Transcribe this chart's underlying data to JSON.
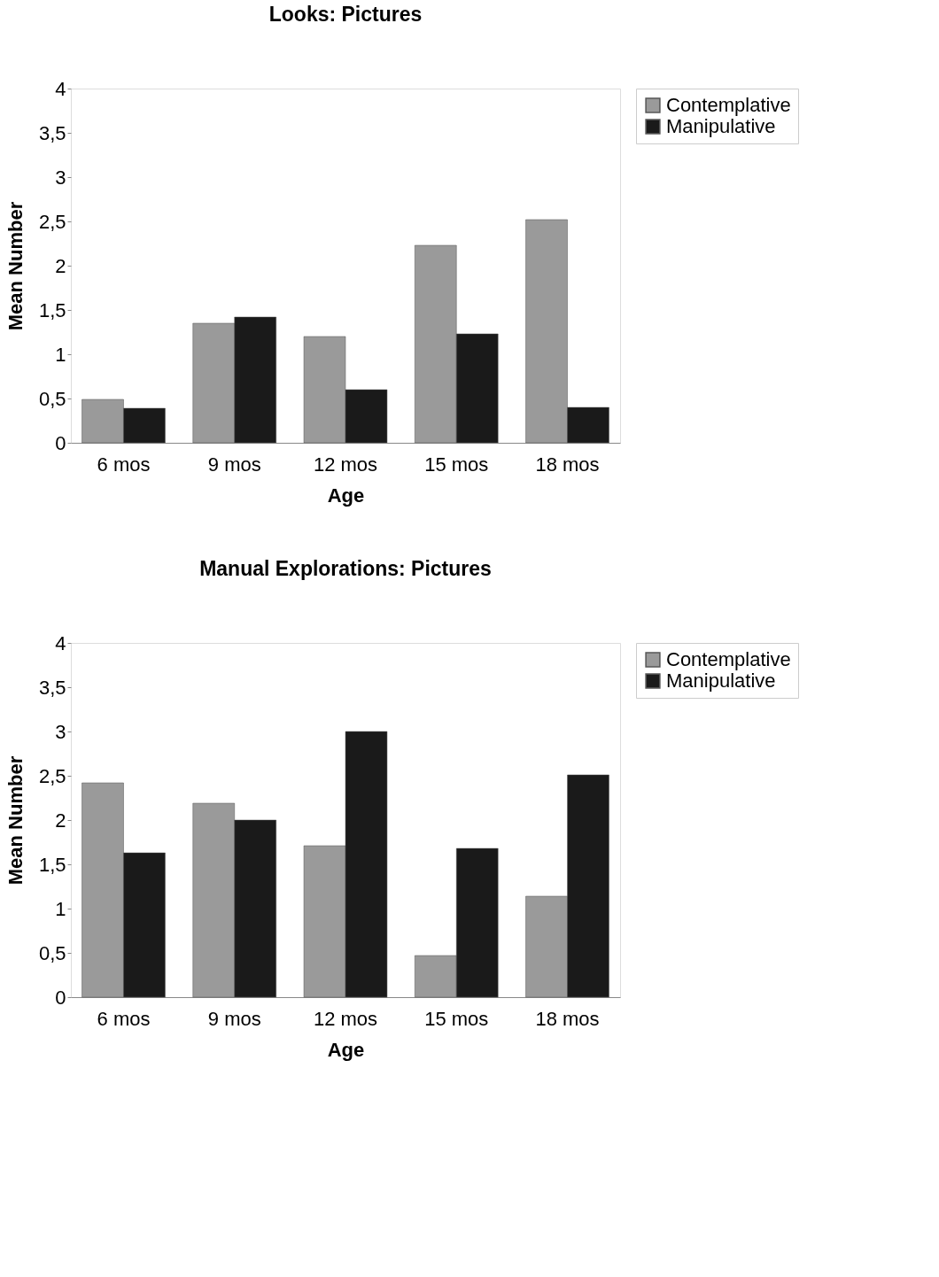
{
  "chart_data": [
    {
      "type": "bar",
      "title": "Looks: Pictures",
      "xlabel": "Age",
      "ylabel": "Mean Number",
      "categories": [
        "6 mos",
        "9 mos",
        "12 mos",
        "15 mos",
        "18 mos"
      ],
      "series": [
        {
          "name": "Contemplative",
          "color": "#9a9a9a",
          "values": [
            0.49,
            1.35,
            1.2,
            2.23,
            2.52
          ]
        },
        {
          "name": "Manipulative",
          "color": "#1a1a1a",
          "values": [
            0.39,
            1.42,
            0.6,
            1.23,
            0.4
          ]
        }
      ],
      "ylim": [
        0,
        4
      ],
      "yticks": [
        0,
        {
          "value": 0.5,
          "label": "0,5"
        },
        1,
        {
          "value": 1.5,
          "label": "1,5"
        },
        2,
        {
          "value": 2.5,
          "label": "2,5"
        },
        3,
        {
          "value": 3.5,
          "label": "3,5"
        },
        4
      ],
      "grid": false,
      "legend": "right"
    },
    {
      "type": "bar",
      "title": "Manual Explorations: Pictures",
      "xlabel": "Age",
      "ylabel": "Mean Number",
      "categories": [
        "6 mos",
        "9 mos",
        "12 mos",
        "15 mos",
        "18 mos"
      ],
      "series": [
        {
          "name": "Contemplative",
          "color": "#9a9a9a",
          "values": [
            2.42,
            2.19,
            1.71,
            0.47,
            1.14
          ]
        },
        {
          "name": "Manipulative",
          "color": "#1a1a1a",
          "values": [
            1.63,
            2.0,
            3.0,
            1.68,
            2.51
          ]
        }
      ],
      "ylim": [
        0,
        4
      ],
      "yticks": [
        0,
        {
          "value": 0.5,
          "label": "0,5"
        },
        1,
        {
          "value": 1.5,
          "label": "1,5"
        },
        2,
        {
          "value": 2.5,
          "label": "2,5"
        },
        3,
        {
          "value": 3.5,
          "label": "3,5"
        },
        4
      ],
      "grid": false,
      "legend": "right"
    }
  ]
}
